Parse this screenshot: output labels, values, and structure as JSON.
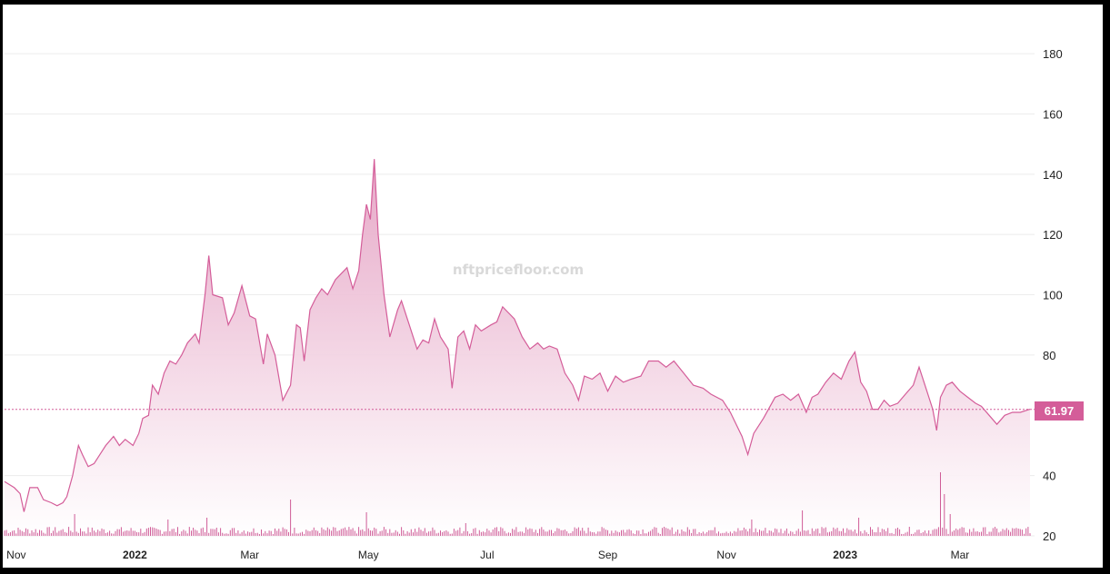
{
  "chart_data": {
    "type": "area",
    "watermark": "nftpricefloor.com",
    "current_value": 61.97,
    "current_label": "61.97",
    "line_color": "#d45d99",
    "fill_color_top": "#e5a3c4",
    "fill_color_bottom": "#ffffff",
    "volume_color": "#cf5c97",
    "ylim": [
      20,
      196
    ],
    "yticks": [
      {
        "value": 20,
        "label": "20"
      },
      {
        "value": 40,
        "label": "40"
      },
      {
        "value": 80,
        "label": "80"
      },
      {
        "value": 100,
        "label": "100"
      },
      {
        "value": 120,
        "label": "120"
      },
      {
        "value": 140,
        "label": "140"
      },
      {
        "value": 160,
        "label": "160"
      },
      {
        "value": 180,
        "label": "180"
      }
    ],
    "xlim": [
      "2021-10-26",
      "2023-04-06"
    ],
    "xticks": [
      {
        "date": "2021-11-01",
        "label": "Nov",
        "bold": false
      },
      {
        "date": "2022-01-01",
        "label": "2022",
        "bold": true
      },
      {
        "date": "2022-03-01",
        "label": "Mar",
        "bold": false
      },
      {
        "date": "2022-05-01",
        "label": "May",
        "bold": false
      },
      {
        "date": "2022-07-01",
        "label": "Jul",
        "bold": false
      },
      {
        "date": "2022-09-01",
        "label": "Sep",
        "bold": false
      },
      {
        "date": "2022-11-01",
        "label": "Nov",
        "bold": false
      },
      {
        "date": "2023-01-01",
        "label": "2023",
        "bold": true
      },
      {
        "date": "2023-03-01",
        "label": "Mar",
        "bold": false
      }
    ],
    "series": [
      {
        "points": [
          [
            "2021-10-26",
            38
          ],
          [
            "2021-10-31",
            36
          ],
          [
            "2021-11-03",
            34
          ],
          [
            "2021-11-05",
            28
          ],
          [
            "2021-11-08",
            36
          ],
          [
            "2021-11-12",
            36
          ],
          [
            "2021-11-15",
            32
          ],
          [
            "2021-11-19",
            31
          ],
          [
            "2021-11-22",
            30
          ],
          [
            "2021-11-25",
            31
          ],
          [
            "2021-11-27",
            33
          ],
          [
            "2021-11-30",
            40
          ],
          [
            "2021-12-03",
            50
          ],
          [
            "2021-12-05",
            47
          ],
          [
            "2021-12-08",
            43
          ],
          [
            "2021-12-11",
            44
          ],
          [
            "2021-12-14",
            47
          ],
          [
            "2021-12-17",
            50
          ],
          [
            "2021-12-21",
            53
          ],
          [
            "2021-12-24",
            50
          ],
          [
            "2021-12-27",
            52
          ],
          [
            "2021-12-31",
            50
          ],
          [
            "2022-01-03",
            54
          ],
          [
            "2022-01-05",
            59
          ],
          [
            "2022-01-08",
            60
          ],
          [
            "2022-01-10",
            70
          ],
          [
            "2022-01-13",
            67
          ],
          [
            "2022-01-16",
            74
          ],
          [
            "2022-01-19",
            78
          ],
          [
            "2022-01-22",
            77
          ],
          [
            "2022-01-25",
            80
          ],
          [
            "2022-01-28",
            84
          ],
          [
            "2022-02-01",
            87
          ],
          [
            "2022-02-03",
            84
          ],
          [
            "2022-02-06",
            100
          ],
          [
            "2022-02-08",
            113
          ],
          [
            "2022-02-10",
            100
          ],
          [
            "2022-02-15",
            99
          ],
          [
            "2022-02-18",
            90
          ],
          [
            "2022-02-21",
            94
          ],
          [
            "2022-02-25",
            103
          ],
          [
            "2022-03-01",
            93
          ],
          [
            "2022-03-04",
            92
          ],
          [
            "2022-03-08",
            77
          ],
          [
            "2022-03-10",
            87
          ],
          [
            "2022-03-14",
            80
          ],
          [
            "2022-03-18",
            65
          ],
          [
            "2022-03-22",
            70
          ],
          [
            "2022-03-25",
            90
          ],
          [
            "2022-03-27",
            89
          ],
          [
            "2022-03-29",
            78
          ],
          [
            "2022-04-01",
            95
          ],
          [
            "2022-04-04",
            99
          ],
          [
            "2022-04-07",
            102
          ],
          [
            "2022-04-10",
            100
          ],
          [
            "2022-04-14",
            105
          ],
          [
            "2022-04-17",
            107
          ],
          [
            "2022-04-20",
            109
          ],
          [
            "2022-04-23",
            102
          ],
          [
            "2022-04-26",
            108
          ],
          [
            "2022-04-28",
            120
          ],
          [
            "2022-04-30",
            130
          ],
          [
            "2022-05-02",
            125
          ],
          [
            "2022-05-04",
            145
          ],
          [
            "2022-05-06",
            120
          ],
          [
            "2022-05-09",
            100
          ],
          [
            "2022-05-12",
            86
          ],
          [
            "2022-05-16",
            95
          ],
          [
            "2022-05-18",
            98
          ],
          [
            "2022-05-22",
            90
          ],
          [
            "2022-05-26",
            82
          ],
          [
            "2022-05-29",
            85
          ],
          [
            "2022-06-01",
            84
          ],
          [
            "2022-06-04",
            92
          ],
          [
            "2022-06-07",
            86
          ],
          [
            "2022-06-11",
            82
          ],
          [
            "2022-06-13",
            69
          ],
          [
            "2022-06-16",
            86
          ],
          [
            "2022-06-19",
            88
          ],
          [
            "2022-06-22",
            82
          ],
          [
            "2022-06-25",
            90
          ],
          [
            "2022-06-28",
            88
          ],
          [
            "2022-07-03",
            90
          ],
          [
            "2022-07-06",
            91
          ],
          [
            "2022-07-09",
            96
          ],
          [
            "2022-07-12",
            94
          ],
          [
            "2022-07-15",
            92
          ],
          [
            "2022-07-19",
            86
          ],
          [
            "2022-07-23",
            82
          ],
          [
            "2022-07-27",
            84
          ],
          [
            "2022-07-30",
            82
          ],
          [
            "2022-08-02",
            83
          ],
          [
            "2022-08-06",
            82
          ],
          [
            "2022-08-10",
            74
          ],
          [
            "2022-08-14",
            70
          ],
          [
            "2022-08-17",
            65
          ],
          [
            "2022-08-20",
            73
          ],
          [
            "2022-08-24",
            72
          ],
          [
            "2022-08-28",
            74
          ],
          [
            "2022-09-01",
            68
          ],
          [
            "2022-09-05",
            73
          ],
          [
            "2022-09-09",
            71
          ],
          [
            "2022-09-13",
            72
          ],
          [
            "2022-09-18",
            73
          ],
          [
            "2022-09-22",
            78
          ],
          [
            "2022-09-27",
            78
          ],
          [
            "2022-10-01",
            76
          ],
          [
            "2022-10-05",
            78
          ],
          [
            "2022-10-10",
            74
          ],
          [
            "2022-10-15",
            70
          ],
          [
            "2022-10-20",
            69
          ],
          [
            "2022-10-24",
            67
          ],
          [
            "2022-10-30",
            65
          ],
          [
            "2022-11-03",
            61
          ],
          [
            "2022-11-06",
            57
          ],
          [
            "2022-11-09",
            53
          ],
          [
            "2022-11-12",
            47
          ],
          [
            "2022-11-15",
            54
          ],
          [
            "2022-11-20",
            59
          ],
          [
            "2022-11-26",
            66
          ],
          [
            "2022-11-30",
            67
          ],
          [
            "2022-12-04",
            65
          ],
          [
            "2022-12-08",
            67
          ],
          [
            "2022-12-12",
            61
          ],
          [
            "2022-12-15",
            66
          ],
          [
            "2022-12-18",
            67
          ],
          [
            "2022-12-22",
            71
          ],
          [
            "2022-12-26",
            74
          ],
          [
            "2022-12-30",
            72
          ],
          [
            "2023-01-03",
            78
          ],
          [
            "2023-01-06",
            81
          ],
          [
            "2023-01-09",
            71
          ],
          [
            "2023-01-12",
            68
          ],
          [
            "2023-01-15",
            62
          ],
          [
            "2023-01-18",
            62
          ],
          [
            "2023-01-21",
            65
          ],
          [
            "2023-01-24",
            63
          ],
          [
            "2023-01-28",
            64
          ],
          [
            "2023-02-01",
            67
          ],
          [
            "2023-02-05",
            70
          ],
          [
            "2023-02-08",
            76
          ],
          [
            "2023-02-12",
            68
          ],
          [
            "2023-02-15",
            62
          ],
          [
            "2023-02-17",
            55
          ],
          [
            "2023-02-19",
            66
          ],
          [
            "2023-02-22",
            70
          ],
          [
            "2023-02-25",
            71
          ],
          [
            "2023-03-01",
            68
          ],
          [
            "2023-03-05",
            66
          ],
          [
            "2023-03-09",
            64
          ],
          [
            "2023-03-12",
            63
          ],
          [
            "2023-03-16",
            60
          ],
          [
            "2023-03-20",
            57
          ],
          [
            "2023-03-24",
            60
          ],
          [
            "2023-03-28",
            61
          ],
          [
            "2023-04-01",
            61
          ],
          [
            "2023-04-06",
            62
          ]
        ]
      }
    ],
    "volume_spikes": [
      {
        "date": "2021-12-01",
        "level": 12
      },
      {
        "date": "2022-01-18",
        "level": 9
      },
      {
        "date": "2022-02-07",
        "level": 10
      },
      {
        "date": "2022-03-22",
        "level": 20
      },
      {
        "date": "2022-04-30",
        "level": 13
      },
      {
        "date": "2022-06-20",
        "level": 7
      },
      {
        "date": "2022-11-14",
        "level": 9
      },
      {
        "date": "2022-12-10",
        "level": 14
      },
      {
        "date": "2023-01-08",
        "level": 10
      },
      {
        "date": "2023-02-19",
        "level": 35
      },
      {
        "date": "2023-02-21",
        "level": 23
      },
      {
        "date": "2023-02-24",
        "level": 12
      }
    ]
  }
}
